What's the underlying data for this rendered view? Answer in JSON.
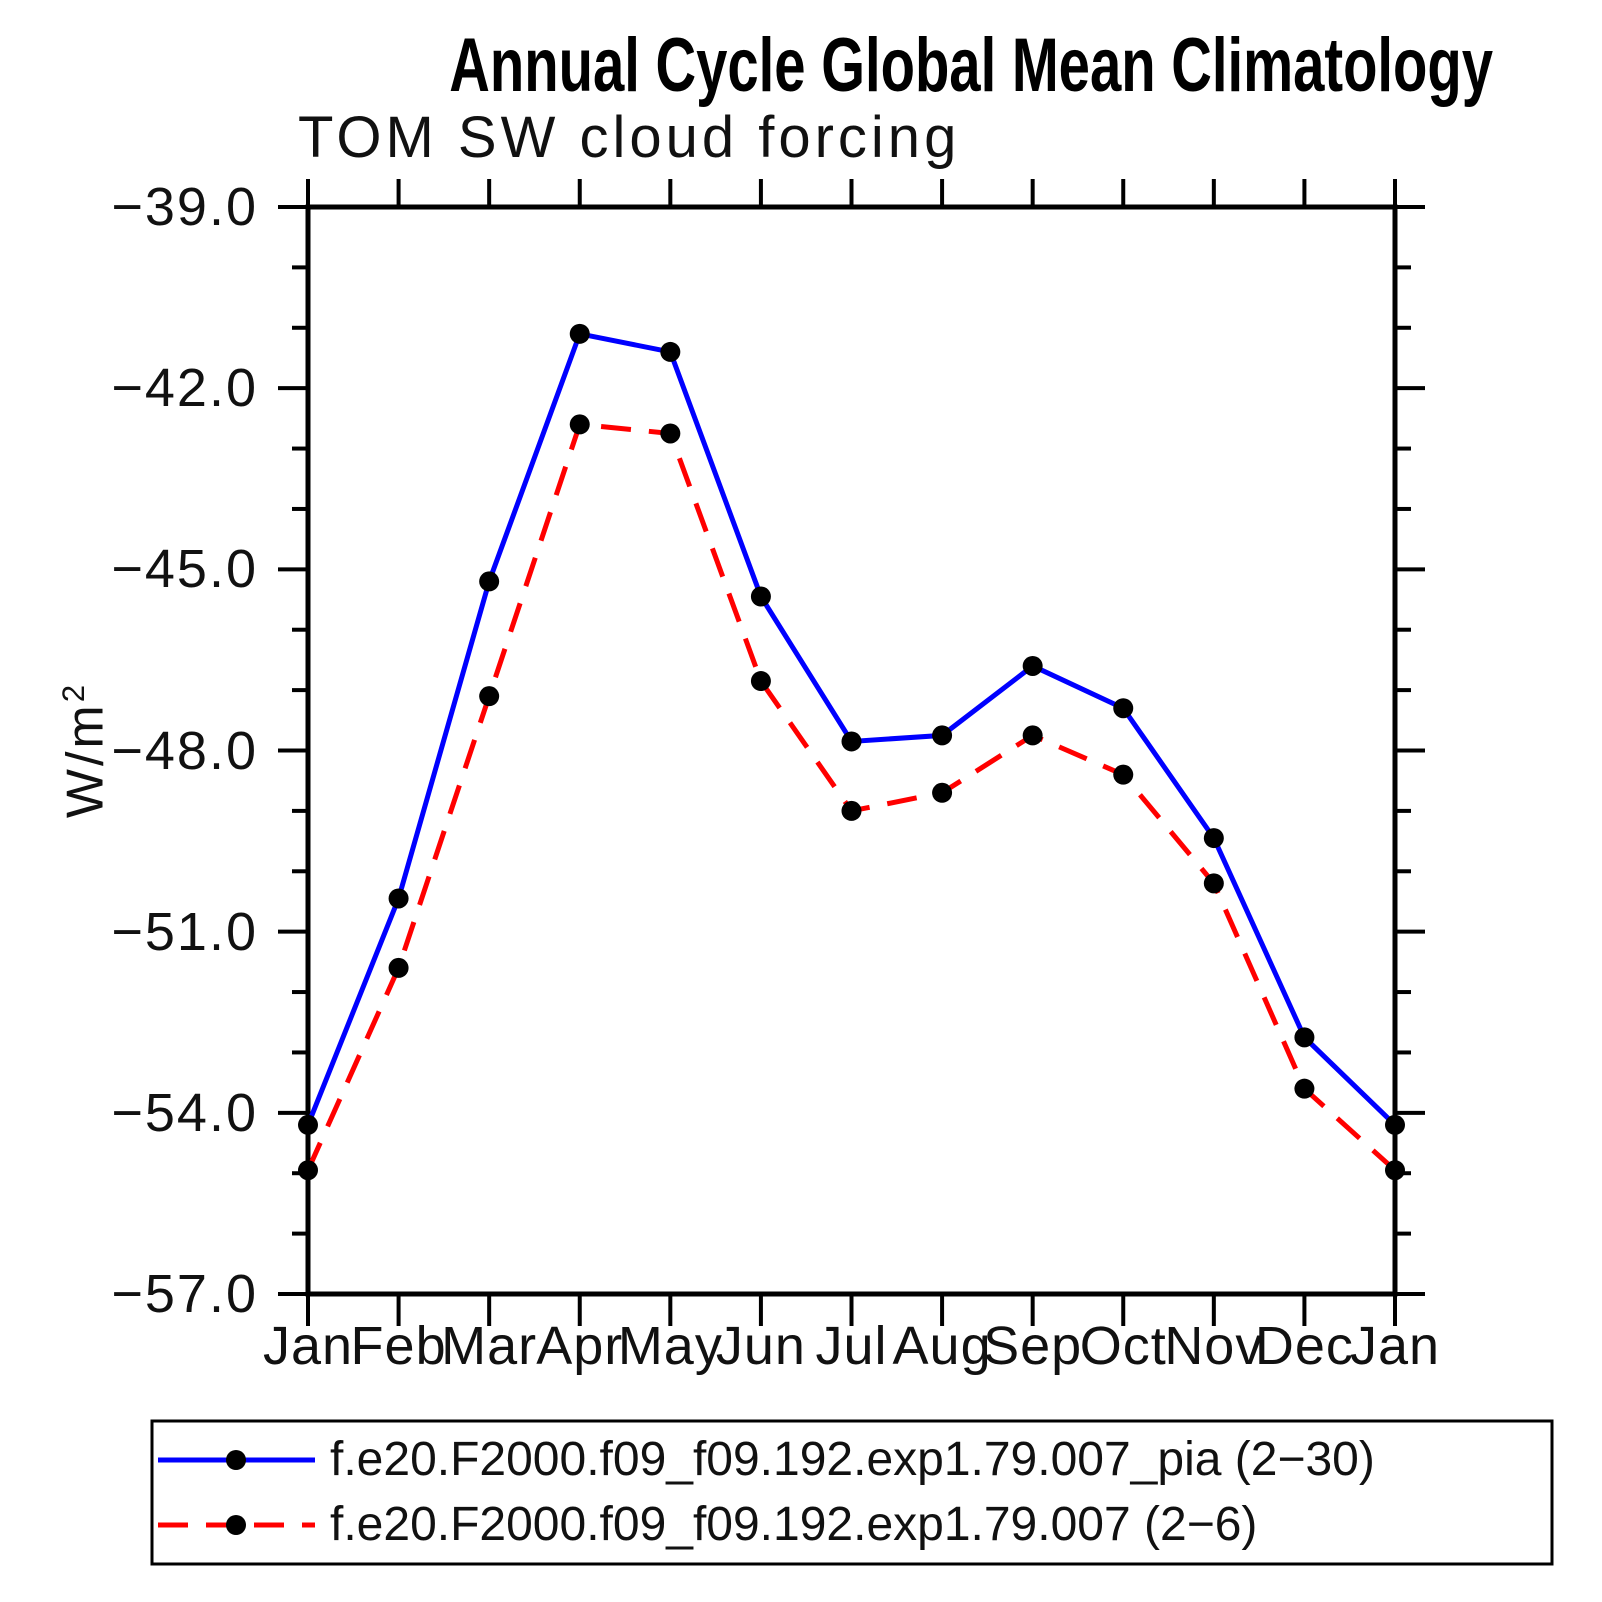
{
  "chart": {
    "title": "Annual Cycle Global Mean Climatology",
    "subtitle": "TOM SW cloud forcing",
    "ylabel": {
      "base": "W/m",
      "exp": "2"
    }
  },
  "chart_data": {
    "type": "line",
    "title": "Annual Cycle Global Mean Climatology",
    "subtitle": "TOM SW cloud forcing",
    "ylabel": "W/m2",
    "xlabel": "",
    "x": [
      "Jan",
      "Feb",
      "Mar",
      "Apr",
      "May",
      "Jun",
      "Jul",
      "Aug",
      "Sep",
      "Oct",
      "Nov",
      "Dec",
      "Jan"
    ],
    "ylim": [
      -57.0,
      -39.0
    ],
    "yticks_major": {
      "values": [
        -39.0,
        -42.0,
        -45.0,
        -48.0,
        -51.0,
        -54.0,
        -57.0
      ],
      "labels": [
        "−39.0",
        "−42.0",
        "−45.0",
        "−48.0",
        "−51.0",
        "−54.0",
        "−57.0"
      ]
    },
    "ytick_minor_step": 1.0,
    "grid": false,
    "legend_position": "bottom",
    "marker_color": "#000000",
    "series": [
      {
        "name": "f.e20.F2000.f09_f09.192.exp1.79.007_pia (2−30)",
        "color": "#0000FF",
        "style": "solid",
        "marker": "circle",
        "values": [
          -54.2,
          -50.45,
          -45.2,
          -41.1,
          -41.4,
          -45.45,
          -47.85,
          -47.75,
          -46.6,
          -47.3,
          -49.45,
          -52.75,
          -54.2
        ]
      },
      {
        "name": "f.e20.F2000.f09_f09.192.exp1.79.007 (2−6)",
        "color": "#FF0000",
        "style": "dashed",
        "marker": "circle",
        "values": [
          -54.95,
          -51.6,
          -47.1,
          -42.6,
          -42.75,
          -46.85,
          -49.0,
          -48.7,
          -47.75,
          -48.4,
          -50.2,
          -53.6,
          -54.95
        ]
      }
    ]
  }
}
